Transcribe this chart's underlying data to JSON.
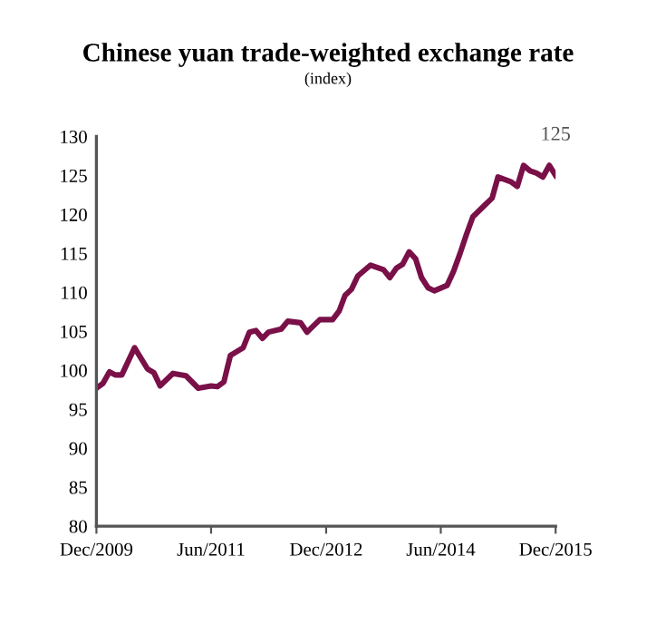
{
  "chart_data": {
    "type": "line",
    "title": "Chinese yuan trade-weighted exchange rate",
    "subtitle": "(index)",
    "x": [
      "2009-12",
      "2010-01",
      "2010-02",
      "2010-03",
      "2010-04",
      "2010-06",
      "2010-08",
      "2010-09",
      "2010-10",
      "2010-12",
      "2011-02",
      "2011-04",
      "2011-06",
      "2011-07",
      "2011-08",
      "2011-09",
      "2011-11",
      "2011-12",
      "2012-01",
      "2012-02",
      "2012-03",
      "2012-05",
      "2012-06",
      "2012-08",
      "2012-09",
      "2012-11",
      "2013-01",
      "2013-02",
      "2013-03",
      "2013-04",
      "2013-05",
      "2013-07",
      "2013-09",
      "2013-10",
      "2013-11",
      "2013-12",
      "2014-01",
      "2014-02",
      "2014-03",
      "2014-04",
      "2014-05",
      "2014-07",
      "2014-08",
      "2014-09",
      "2014-10",
      "2014-11",
      "2015-01",
      "2015-02",
      "2015-03",
      "2015-05",
      "2015-06",
      "2015-07",
      "2015-08",
      "2015-09",
      "2015-10",
      "2015-11",
      "2015-12"
    ],
    "series": [
      {
        "color": "#7a1048",
        "values": [
          97.7,
          98.3,
          99.8,
          99.4,
          99.4,
          102.9,
          100.2,
          99.7,
          98.0,
          99.6,
          99.3,
          97.7,
          98.0,
          97.9,
          98.5,
          101.9,
          102.9,
          104.9,
          105.1,
          104.1,
          104.9,
          105.3,
          106.3,
          106.1,
          104.9,
          106.5,
          106.5,
          107.6,
          109.6,
          110.4,
          112.1,
          113.5,
          112.9,
          111.9,
          113.1,
          113.6,
          115.2,
          114.3,
          111.9,
          110.6,
          110.2,
          110.9,
          112.7,
          115.0,
          117.4,
          119.7,
          121.3,
          122.1,
          124.8,
          124.2,
          123.6,
          126.3,
          125.6,
          125.3,
          124.8,
          126.3,
          125.0
        ]
      }
    ],
    "annotations": [
      {
        "text": "125",
        "x": "2015-12",
        "y": 125
      }
    ],
    "xlim": [
      "2009-12",
      "2015-12"
    ],
    "xticks": [
      {
        "value": "2009-12",
        "label": "Dec/2009"
      },
      {
        "value": "2011-06",
        "label": "Jun/2011"
      },
      {
        "value": "2012-12",
        "label": "Dec/2012"
      },
      {
        "value": "2014-06",
        "label": "Jun/2014"
      },
      {
        "value": "2015-12",
        "label": "Dec/2015"
      }
    ],
    "ylim": [
      80,
      130
    ],
    "yticks": [
      80,
      85,
      90,
      95,
      100,
      105,
      110,
      115,
      120,
      125,
      130
    ],
    "grid": false,
    "legend": false,
    "marker": "none",
    "line_style": "solid"
  }
}
